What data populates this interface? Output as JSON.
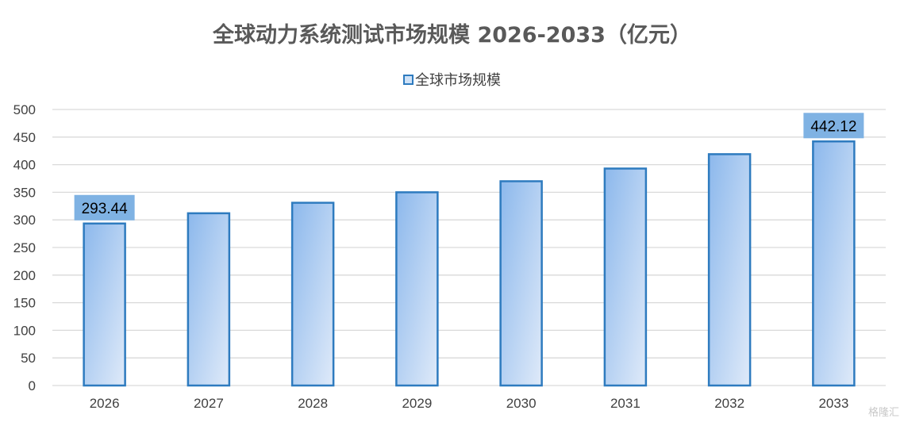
{
  "chart_data": {
    "type": "bar",
    "title": "全球动力系统测试市场规模 2026-2033（亿元）",
    "series": [
      {
        "name": "全球市场规模",
        "values": [
          293.44,
          312,
          331,
          350,
          370,
          393,
          419,
          442.12
        ]
      }
    ],
    "categories": [
      "2026",
      "2027",
      "2028",
      "2029",
      "2030",
      "2031",
      "2032",
      "2033"
    ],
    "data_labels": {
      "2026": "293.44",
      "2033": "442.12"
    },
    "ylim": [
      0,
      500
    ],
    "yticks": [
      "0",
      "50",
      "100",
      "150",
      "200",
      "250",
      "300",
      "350",
      "400",
      "450",
      "500"
    ],
    "grid": true,
    "legend_position": "top",
    "colors": {
      "bar_border": "#2e7bbf",
      "bar_fill_start": "#8cb8ec",
      "bar_fill_end": "#dfeaf9",
      "label_bg": "#7fb2e3",
      "grid": "#d9d9d9"
    }
  },
  "watermark": "格隆汇"
}
